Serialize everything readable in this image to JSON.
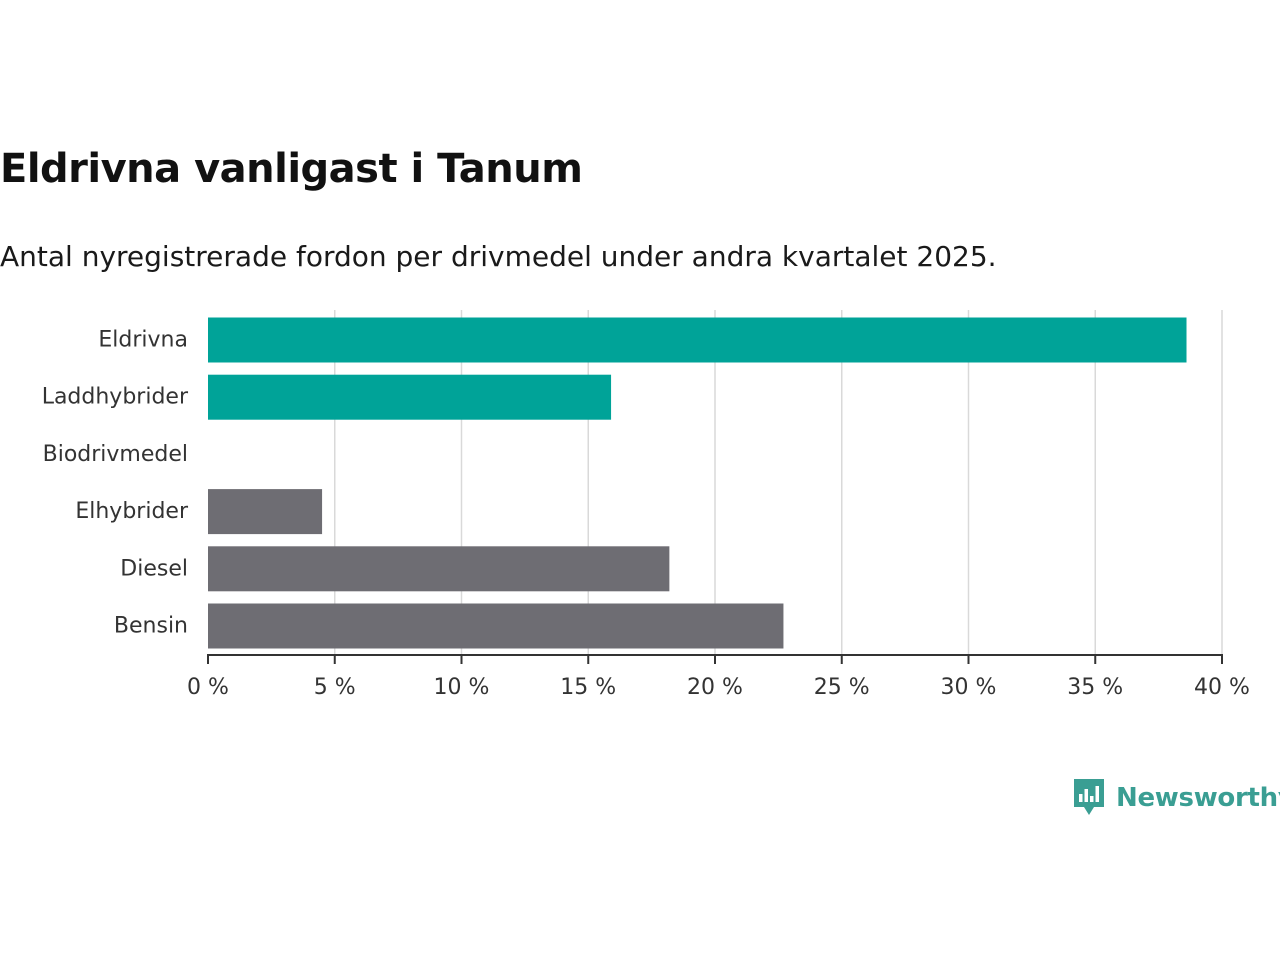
{
  "title": "Eldrivna vanligast i Tanum",
  "subtitle": "Antal nyregistrerade fordon per drivmedel under andra kvartalet 2025.",
  "brand": {
    "name": "Newsworthy",
    "icon": "newsworthy-logo-icon",
    "color": "#3a9e93"
  },
  "colors": {
    "highlight": "#00a398",
    "default": "#6e6d73",
    "grid": "#d9d9d9",
    "axis": "#333333"
  },
  "chart_data": {
    "type": "bar",
    "orientation": "horizontal",
    "categories": [
      "Eldrivna",
      "Laddhybrider",
      "Biodrivmedel",
      "Elhybrider",
      "Diesel",
      "Bensin"
    ],
    "values": [
      38.6,
      15.9,
      0,
      4.5,
      18.2,
      22.7
    ],
    "highlight": [
      true,
      true,
      false,
      false,
      false,
      false
    ],
    "xlim": [
      0,
      40
    ],
    "xticks": [
      0,
      5,
      10,
      15,
      20,
      25,
      30,
      35,
      40
    ],
    "tick_suffix": " %",
    "grid": true
  }
}
